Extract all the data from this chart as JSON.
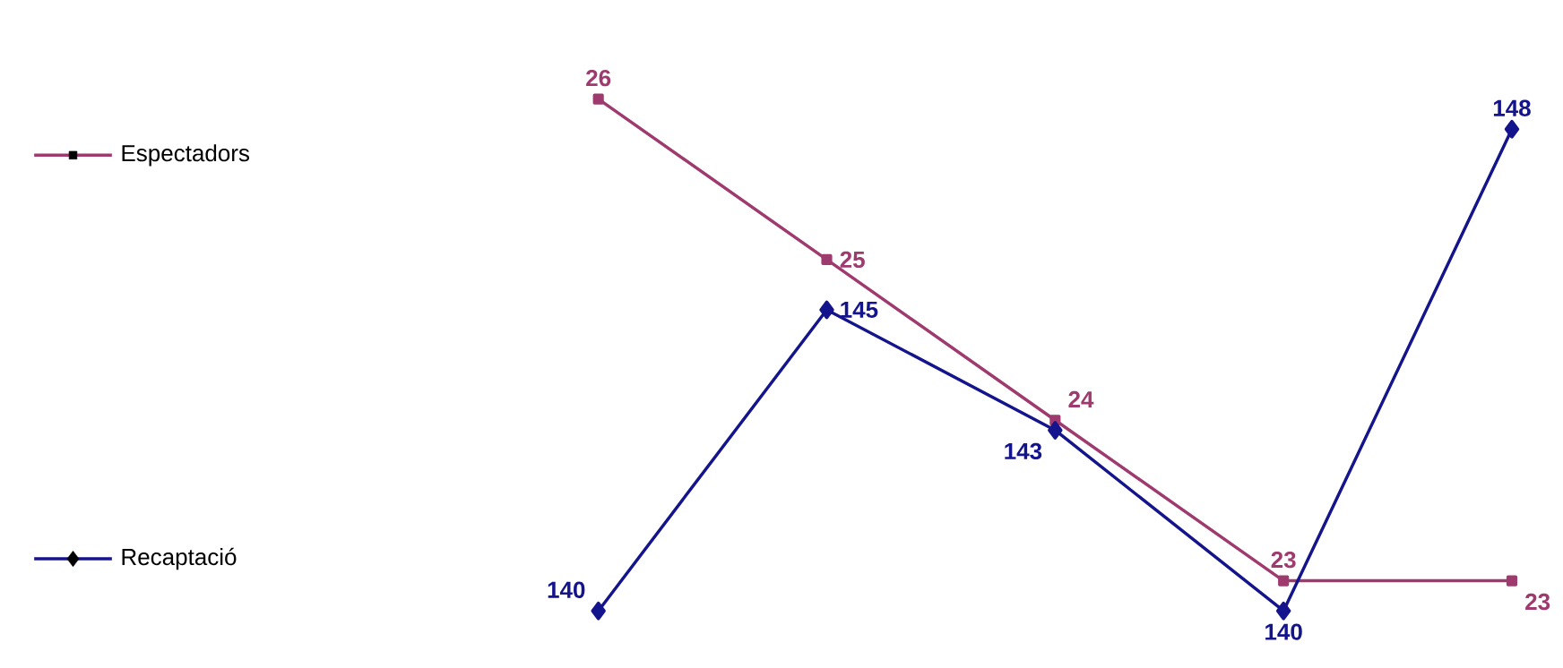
{
  "chart_data": [
    {
      "type": "line",
      "categories": [
        null,
        null,
        null,
        null,
        null
      ],
      "series": [
        {
          "name": "Espectadors",
          "color": "#9e3a6e",
          "marker": "square",
          "values": [
            26,
            25,
            24,
            23,
            23
          ]
        }
      ],
      "data_labels": true,
      "legend": "left"
    },
    {
      "type": "line",
      "categories": [
        null,
        null,
        null,
        null,
        null
      ],
      "series": [
        {
          "name": "Recaptació",
          "color": "#14148c",
          "marker": "diamond",
          "values": [
            140,
            145,
            143,
            140,
            148
          ]
        }
      ],
      "data_labels": true,
      "legend": "left"
    }
  ]
}
